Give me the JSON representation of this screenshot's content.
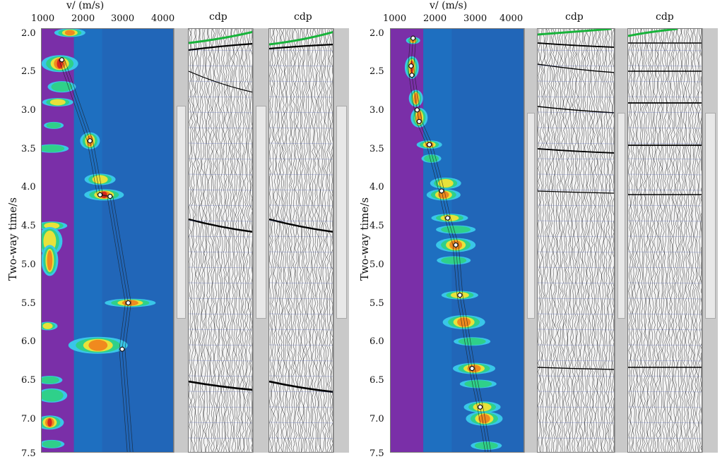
{
  "chart_data": [
    {
      "type": "heatmap",
      "panel": "left",
      "xlabel": "v/ (m/s)",
      "x_ticks": [
        "1000",
        "2000",
        "3000",
        "4000"
      ],
      "xlim": [
        1000,
        4300
      ],
      "ylabel": "Two-way time/s",
      "y_ticks": [
        "2.0",
        "2.5",
        "3.0",
        "3.5",
        "4.0",
        "4.5",
        "5.0",
        "5.5",
        "6.0",
        "6.5",
        "7.0",
        "7.5"
      ],
      "ylim": [
        7.5,
        2.0
      ],
      "picks": [
        {
          "t": 2.4,
          "v": 1500
        },
        {
          "t": 3.45,
          "v": 2200
        },
        {
          "t": 4.15,
          "v": 2450
        },
        {
          "t": 4.17,
          "v": 2700
        },
        {
          "t": 5.55,
          "v": 3150
        },
        {
          "t": 6.15,
          "v": 3000
        }
      ],
      "gathers": [
        {
          "label": "cdp"
        },
        {
          "label": "cdp"
        }
      ]
    },
    {
      "type": "heatmap",
      "panel": "right",
      "xlabel": "v/ (m/s)",
      "x_ticks": [
        "1000",
        "2000",
        "3000",
        "4000"
      ],
      "xlim": [
        1000,
        4300
      ],
      "ylabel": "Two-way time/s",
      "y_ticks": [
        "2.0",
        "2.5",
        "3.0",
        "3.5",
        "4.0",
        "4.5",
        "5.0",
        "5.5",
        "6.0",
        "6.5",
        "7.0",
        "7.5"
      ],
      "ylim": [
        7.5,
        2.0
      ],
      "picks": [
        {
          "t": 2.12,
          "v": 1550
        },
        {
          "t": 2.48,
          "v": 1500
        },
        {
          "t": 2.6,
          "v": 1520
        },
        {
          "t": 3.05,
          "v": 1650
        },
        {
          "t": 3.2,
          "v": 1700
        },
        {
          "t": 3.5,
          "v": 1950
        },
        {
          "t": 4.1,
          "v": 2250
        },
        {
          "t": 4.45,
          "v": 2400
        },
        {
          "t": 4.8,
          "v": 2600
        },
        {
          "t": 5.45,
          "v": 2700
        },
        {
          "t": 6.4,
          "v": 3000
        },
        {
          "t": 6.9,
          "v": 3200
        }
      ],
      "gathers": [
        {
          "label": "cdp"
        },
        {
          "label": "cdp"
        }
      ]
    }
  ]
}
